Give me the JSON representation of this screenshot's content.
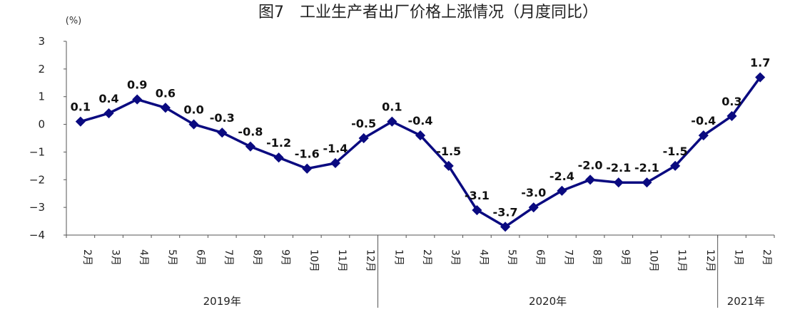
{
  "chart_data": {
    "type": "line",
    "title": "图7　工业生产者出厂价格上涨情况（月度同比）",
    "ylabel": "(%)",
    "ylim": [
      -4,
      3
    ],
    "yticks": [
      3,
      2,
      1,
      0,
      -1,
      -2,
      -3,
      -4
    ],
    "ytick_labels": [
      "3",
      "2",
      "1",
      "0",
      "−1",
      "−2",
      "−3",
      "−4"
    ],
    "grid": false,
    "legend": "none",
    "series_color": "#0a0a80",
    "categories": [
      "2月",
      "3月",
      "4月",
      "5月",
      "6月",
      "7月",
      "8月",
      "9月",
      "10月",
      "11月",
      "12月",
      "1月",
      "2月",
      "3月",
      "4月",
      "5月",
      "6月",
      "7月",
      "8月",
      "9月",
      "10月",
      "11月",
      "12月",
      "1月",
      "2月"
    ],
    "year_labels": [
      {
        "text": "2019年",
        "start": 0,
        "end": 10
      },
      {
        "text": "2020年",
        "start": 11,
        "end": 22
      },
      {
        "text": "2021年",
        "start": 23,
        "end": 24
      }
    ],
    "series": [
      {
        "values": [
          0.1,
          0.4,
          0.9,
          0.6,
          0.0,
          -0.3,
          -0.8,
          -1.2,
          -1.6,
          -1.4,
          -0.5,
          0.1,
          -0.4,
          -1.5,
          -3.1,
          -3.7,
          -3.0,
          -2.4,
          -2.0,
          -2.1,
          -2.1,
          -1.5,
          -0.4,
          0.3,
          1.7
        ],
        "labels": [
          "0.1",
          "0.4",
          "0.9",
          "0.6",
          "0.0",
          "-0.3",
          "-0.8",
          "-1.2",
          "-1.6",
          "-1.4",
          "-0.5",
          "0.1",
          "-0.4",
          "-1.5",
          "-3.1",
          "-3.7",
          "-3.0",
          "-2.4",
          "-2.0",
          "-2.1",
          "-2.1",
          "-1.5",
          "-0.4",
          "0.3",
          "1.7"
        ]
      }
    ]
  }
}
